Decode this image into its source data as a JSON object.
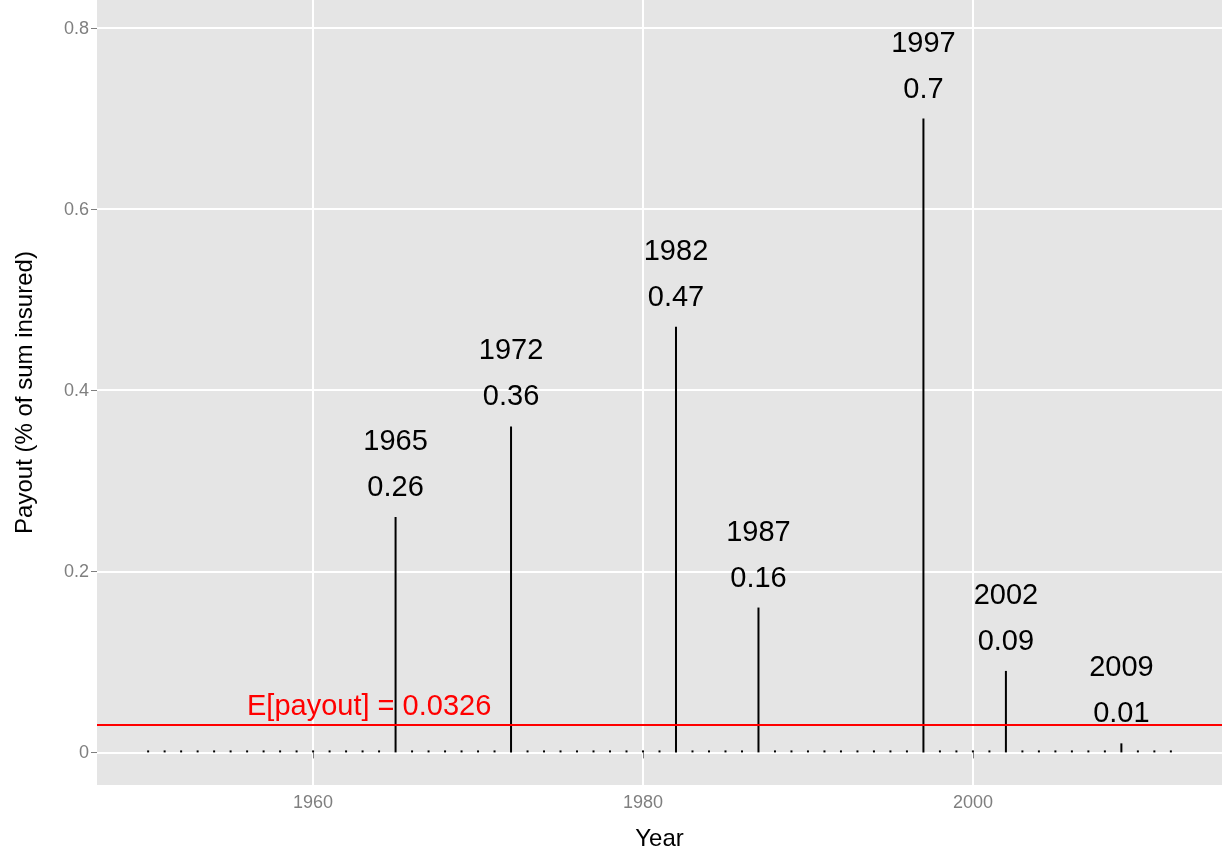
{
  "chart_data": {
    "type": "bar",
    "xlabel": "Year",
    "ylabel": "Payout (% of sum insured)",
    "x": [
      1950,
      1951,
      1952,
      1953,
      1954,
      1955,
      1956,
      1957,
      1958,
      1959,
      1960,
      1961,
      1962,
      1963,
      1964,
      1965,
      1966,
      1967,
      1968,
      1969,
      1970,
      1971,
      1972,
      1973,
      1974,
      1975,
      1976,
      1977,
      1978,
      1979,
      1980,
      1981,
      1982,
      1983,
      1984,
      1985,
      1986,
      1987,
      1988,
      1989,
      1990,
      1991,
      1992,
      1993,
      1994,
      1995,
      1996,
      1997,
      1998,
      1999,
      2000,
      2001,
      2002,
      2003,
      2004,
      2005,
      2006,
      2007,
      2008,
      2009,
      2010,
      2011,
      2012
    ],
    "values": [
      0,
      0,
      0,
      0,
      0,
      0,
      0,
      0,
      0,
      0,
      0,
      0,
      0,
      0,
      0,
      0.26,
      0,
      0,
      0,
      0,
      0,
      0,
      0.36,
      0,
      0,
      0,
      0,
      0,
      0,
      0,
      0,
      0,
      0.47,
      0,
      0,
      0,
      0,
      0.16,
      0,
      0,
      0,
      0,
      0,
      0,
      0,
      0,
      0,
      0.7,
      0,
      0,
      0,
      0,
      0.09,
      0,
      0,
      0,
      0,
      0,
      0,
      0.01,
      0,
      0,
      0
    ],
    "value_labels": [
      null,
      null,
      null,
      null,
      null,
      null,
      null,
      null,
      null,
      null,
      null,
      null,
      null,
      null,
      null,
      "1965\n0.26",
      null,
      null,
      null,
      null,
      null,
      null,
      "1972\n0.36",
      null,
      null,
      null,
      null,
      null,
      null,
      null,
      null,
      null,
      "1982\n0.47",
      null,
      null,
      null,
      null,
      "1987\n0.16",
      null,
      null,
      null,
      null,
      null,
      null,
      null,
      null,
      null,
      "1997\n0.7",
      null,
      null,
      null,
      null,
      "2002\n0.09",
      null,
      null,
      null,
      null,
      null,
      null,
      "2009\n0.01",
      null,
      null,
      null
    ],
    "color": "#000000",
    "xlim": [
      1946.9,
      2015.1
    ],
    "xticks": [
      1960,
      1980,
      2000
    ],
    "ylim": [
      -0.036,
      0.831
    ],
    "yticks": [
      0,
      {
        "value": 0.2,
        "label": "0.2"
      },
      {
        "value": 0.4,
        "label": "0.4"
      },
      {
        "value": 0.6,
        "label": "0.6"
      },
      {
        "value": 0.8,
        "label": "0.8"
      }
    ],
    "grid": true,
    "ref_lines": [
      {
        "axis": "y",
        "value": 0.0326,
        "label": "E[payout] = 0.0326",
        "color": "#ff0000"
      }
    ]
  }
}
